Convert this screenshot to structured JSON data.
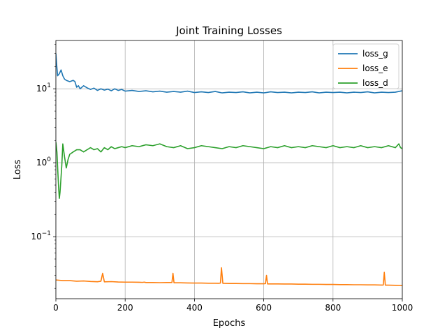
{
  "chart_data": {
    "type": "line",
    "title": "Joint Training Losses",
    "xlabel": "Epochs",
    "ylabel": "Loss",
    "xlim": [
      0,
      1000
    ],
    "ylim": [
      0.0145,
      45
    ],
    "yscale": "log",
    "grid": true,
    "legend_position": "top-right",
    "x_ticks": [
      {
        "value": 0,
        "label": "0"
      },
      {
        "value": 200,
        "label": "200"
      },
      {
        "value": 400,
        "label": "400"
      },
      {
        "value": 600,
        "label": "600"
      },
      {
        "value": 800,
        "label": "800"
      },
      {
        "value": 1000,
        "label": "1000"
      }
    ],
    "y_ticks": [
      {
        "value": 0.1,
        "base": "10",
        "exp": "−1"
      },
      {
        "value": 1,
        "base": "10",
        "exp": "0"
      },
      {
        "value": 10,
        "base": "10",
        "exp": "1"
      }
    ],
    "series": [
      {
        "name": "loss_g",
        "color": "#1f77b4",
        "x": [
          0,
          2,
          5,
          10,
          15,
          20,
          25,
          30,
          40,
          50,
          55,
          60,
          65,
          70,
          80,
          90,
          100,
          110,
          120,
          130,
          140,
          150,
          160,
          170,
          180,
          190,
          200,
          220,
          240,
          260,
          280,
          300,
          320,
          340,
          360,
          380,
          400,
          420,
          440,
          460,
          480,
          500,
          520,
          540,
          560,
          580,
          600,
          620,
          640,
          660,
          680,
          700,
          720,
          740,
          760,
          780,
          800,
          820,
          840,
          860,
          880,
          900,
          920,
          940,
          960,
          980,
          1000
        ],
        "y": [
          30,
          22,
          15,
          16,
          18,
          15,
          13.5,
          13,
          12.5,
          13,
          12.5,
          10.5,
          11,
          10,
          11,
          10.3,
          9.8,
          10.2,
          9.5,
          10,
          9.6,
          9.9,
          9.4,
          10,
          9.5,
          9.8,
          9.3,
          9.5,
          9.2,
          9.4,
          9.1,
          9.3,
          9.0,
          9.2,
          9.0,
          9.3,
          8.9,
          9.1,
          8.9,
          9.2,
          8.8,
          9.0,
          8.9,
          9.1,
          8.8,
          9.0,
          8.8,
          9.1,
          8.9,
          9.0,
          8.8,
          9.0,
          8.9,
          9.1,
          8.8,
          9.0,
          8.9,
          9.0,
          8.8,
          9.0,
          8.9,
          9.1,
          8.8,
          9.0,
          8.9,
          9.0,
          9.4
        ]
      },
      {
        "name": "loss_e",
        "color": "#ff7f0e",
        "x": [
          0,
          20,
          40,
          60,
          80,
          100,
          120,
          130,
          135,
          140,
          160,
          180,
          200,
          220,
          240,
          250,
          255,
          260,
          280,
          300,
          320,
          335,
          338,
          341,
          360,
          380,
          400,
          420,
          440,
          460,
          470,
          475,
          478,
          482,
          500,
          520,
          540,
          560,
          580,
          600,
          605,
          608,
          611,
          620,
          640,
          660,
          680,
          700,
          720,
          740,
          760,
          780,
          800,
          820,
          840,
          860,
          870,
          880,
          900,
          920,
          940,
          945,
          948,
          951,
          960,
          980,
          1000
        ],
        "y": [
          0.026,
          0.0255,
          0.0255,
          0.025,
          0.0252,
          0.0248,
          0.0246,
          0.025,
          0.032,
          0.0245,
          0.0247,
          0.0244,
          0.0243,
          0.0243,
          0.0242,
          0.0241,
          0.0243,
          0.024,
          0.024,
          0.0239,
          0.024,
          0.024,
          0.032,
          0.0238,
          0.0238,
          0.0237,
          0.0236,
          0.0236,
          0.0235,
          0.0235,
          0.0234,
          0.0236,
          0.038,
          0.0234,
          0.0233,
          0.0233,
          0.0232,
          0.0232,
          0.0231,
          0.0231,
          0.0232,
          0.03,
          0.023,
          0.023,
          0.023,
          0.0229,
          0.0229,
          0.0228,
          0.0228,
          0.0227,
          0.0227,
          0.0226,
          0.0226,
          0.0225,
          0.0225,
          0.0224,
          0.0224,
          0.0224,
          0.0223,
          0.0223,
          0.0222,
          0.0222,
          0.033,
          0.0221,
          0.0221,
          0.022,
          0.0218
        ]
      },
      {
        "name": "loss_d",
        "color": "#2ca02c",
        "x": [
          0,
          3,
          6,
          8,
          10,
          12,
          14,
          17,
          20,
          25,
          30,
          35,
          40,
          50,
          60,
          70,
          80,
          90,
          100,
          110,
          120,
          130,
          140,
          150,
          160,
          170,
          180,
          190,
          200,
          220,
          240,
          260,
          280,
          300,
          320,
          340,
          360,
          380,
          400,
          420,
          440,
          460,
          480,
          500,
          520,
          540,
          560,
          580,
          600,
          620,
          640,
          660,
          680,
          700,
          720,
          740,
          760,
          780,
          800,
          820,
          840,
          860,
          880,
          900,
          920,
          940,
          960,
          980,
          990,
          995,
          1000
        ],
        "y": [
          1.9,
          1.4,
          0.7,
          0.45,
          0.33,
          0.4,
          0.55,
          0.9,
          1.8,
          1.2,
          0.85,
          1.1,
          1.3,
          1.4,
          1.5,
          1.5,
          1.4,
          1.5,
          1.6,
          1.5,
          1.55,
          1.4,
          1.6,
          1.5,
          1.65,
          1.55,
          1.6,
          1.65,
          1.6,
          1.7,
          1.65,
          1.75,
          1.7,
          1.8,
          1.65,
          1.6,
          1.7,
          1.55,
          1.6,
          1.7,
          1.65,
          1.6,
          1.55,
          1.65,
          1.6,
          1.7,
          1.65,
          1.6,
          1.55,
          1.65,
          1.6,
          1.7,
          1.6,
          1.65,
          1.6,
          1.7,
          1.65,
          1.6,
          1.7,
          1.6,
          1.65,
          1.6,
          1.7,
          1.6,
          1.65,
          1.6,
          1.7,
          1.6,
          1.8,
          1.6,
          1.55
        ]
      }
    ]
  }
}
